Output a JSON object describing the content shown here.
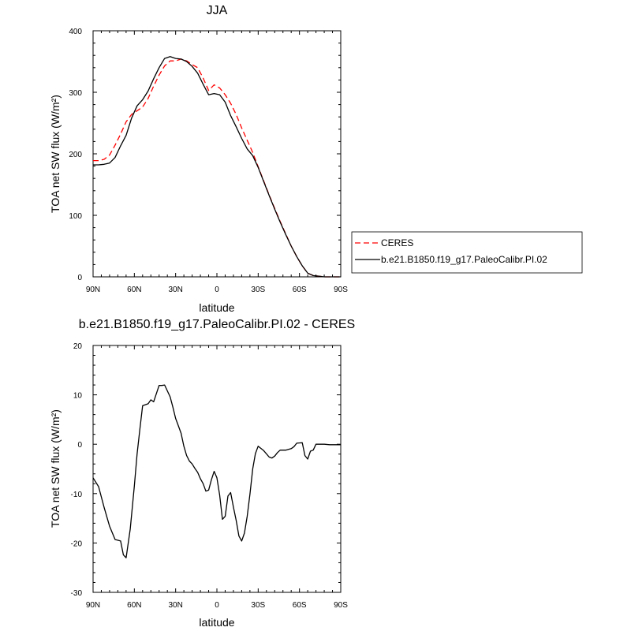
{
  "chart_data": [
    {
      "type": "line",
      "title": "JJA",
      "xlabel": "latitude",
      "ylabel": "TOA net SW flux (W/m²)",
      "x": [
        90,
        86,
        82,
        78,
        74,
        70,
        66,
        62,
        58,
        54,
        50,
        46,
        42,
        38,
        34,
        30,
        26,
        22,
        18,
        14,
        10,
        6,
        2,
        -2,
        -6,
        -10,
        -14,
        -18,
        -22,
        -26,
        -30,
        -34,
        -38,
        -42,
        -46,
        -50,
        -54,
        -58,
        -62,
        -66,
        -70,
        -74,
        -78,
        -82,
        -86,
        -90
      ],
      "xlim": [
        90,
        -90
      ],
      "xticks": [
        90,
        60,
        30,
        0,
        -30,
        -60,
        -90
      ],
      "xticklabels": [
        "90N",
        "60N",
        "30N",
        "0",
        "30S",
        "60S",
        "90S"
      ],
      "ylim": [
        0,
        400
      ],
      "yticks": [
        0,
        100,
        200,
        300,
        400
      ],
      "yticklabels": [
        "0",
        "100",
        "200",
        "300",
        "400"
      ],
      "series": [
        {
          "name": "CERES",
          "color": "#ff0000",
          "dash": "dashed",
          "values": [
            189,
            189,
            191,
            198,
            214,
            232,
            252,
            264,
            270,
            276,
            290,
            310,
            328,
            343,
            351,
            351,
            354,
            351,
            345,
            340,
            323,
            303,
            312,
            307,
            296,
            282,
            264,
            242,
            222,
            202,
            179,
            156,
            133,
            111,
            90,
            70,
            50,
            33,
            18,
            6,
            2,
            1,
            0,
            0,
            0,
            0
          ]
        },
        {
          "name": "b.e21.B1850.f19_g17.PaleoCalibr.PI.02",
          "color": "#000000",
          "dash": "solid",
          "values": [
            182,
            182,
            183,
            185,
            194,
            213,
            230,
            258,
            278,
            288,
            302,
            322,
            340,
            355,
            358,
            355,
            354,
            350,
            342,
            331,
            313,
            296,
            298,
            296,
            284,
            262,
            244,
            225,
            208,
            197,
            178,
            155,
            132,
            110,
            89,
            69,
            50,
            33,
            18,
            6,
            2,
            1,
            0,
            0,
            0,
            0
          ]
        }
      ]
    },
    {
      "type": "line",
      "title": "b.e21.B1850.f19_g17.PaleoCalibr.PI.02 - CERES",
      "xlabel": "latitude",
      "ylabel": "TOA net SW flux (W/m²)",
      "x": [
        90,
        86,
        82,
        78,
        74,
        70,
        68,
        66,
        63,
        60,
        58,
        56,
        54,
        52,
        50,
        48,
        46,
        42,
        40,
        38,
        36,
        34,
        32,
        30,
        28,
        26,
        24,
        22,
        20,
        18,
        16,
        14,
        12,
        10,
        8,
        6,
        4,
        2,
        0,
        -2,
        -4,
        -6,
        -8,
        -10,
        -12,
        -14,
        -16,
        -18,
        -20,
        -22,
        -24,
        -26,
        -28,
        -30,
        -34,
        -38,
        -40,
        -42,
        -44,
        -46,
        -50,
        -54,
        -56,
        -58,
        -62,
        -64,
        -66,
        -68,
        -70,
        -72,
        -74,
        -78,
        -82,
        -86,
        -90
      ],
      "xlim": [
        90,
        -90
      ],
      "xticks": [
        90,
        60,
        30,
        0,
        -30,
        -60,
        -90
      ],
      "xticklabels": [
        "90N",
        "60N",
        "30N",
        "0",
        "30S",
        "60S",
        "90S"
      ],
      "ylim": [
        -30,
        20
      ],
      "yticks": [
        -30,
        -20,
        -10,
        0,
        10,
        20
      ],
      "yticklabels": [
        "-30",
        "-20",
        "-10",
        "0",
        "10",
        "20"
      ],
      "series": [
        {
          "color": "#000000",
          "dash": "solid",
          "values": [
            -6.8,
            -8.6,
            -12.8,
            -16.6,
            -19.3,
            -19.6,
            -22.4,
            -23,
            -17.2,
            -8.5,
            -2,
            3,
            7.8,
            8,
            8.2,
            9,
            8.6,
            11.9,
            11.9,
            12,
            10.8,
            9.6,
            7.5,
            5.2,
            3.7,
            2.2,
            -0.4,
            -2.3,
            -3.4,
            -4,
            -4.9,
            -5.7,
            -7,
            -8,
            -9.5,
            -9.3,
            -7.2,
            -5.5,
            -6.8,
            -10.3,
            -15.2,
            -14.6,
            -10.5,
            -9.8,
            -12.7,
            -15.4,
            -18.6,
            -19.6,
            -18,
            -14.6,
            -10.1,
            -5,
            -1.9,
            -0.4,
            -1.3,
            -2.6,
            -2.8,
            -2.4,
            -1.7,
            -1.2,
            -1.2,
            -0.9,
            -0.5,
            0.2,
            0.3,
            -2.3,
            -3,
            -1.4,
            -1.2,
            0,
            0,
            0,
            -0.1,
            -0.1,
            -0.1
          ]
        }
      ]
    }
  ]
}
